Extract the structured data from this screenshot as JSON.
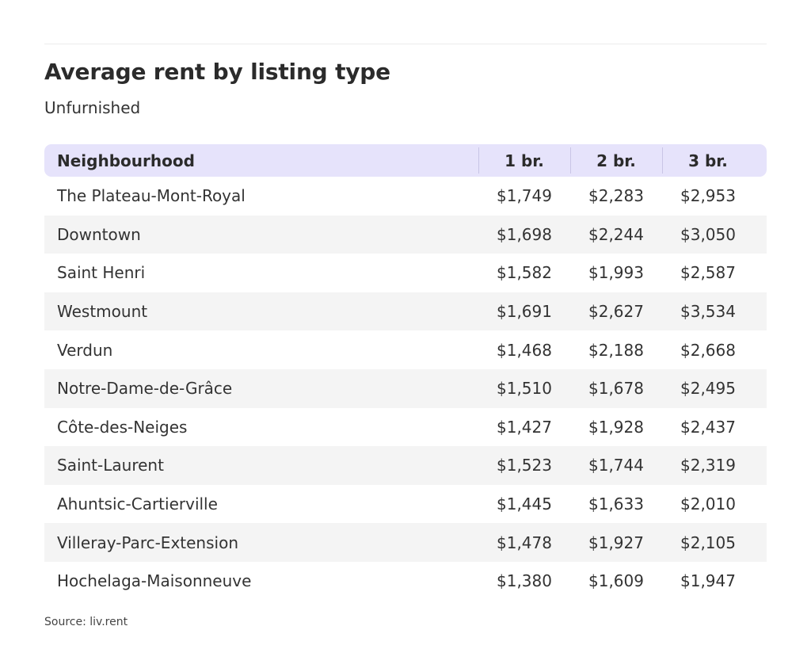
{
  "chart_data": {
    "type": "table",
    "title": "Average rent by listing type",
    "subtitle": "Unfurnished",
    "columns": [
      "Neighbourhood",
      "1 br.",
      "2 br.",
      "3 br."
    ],
    "rows": [
      [
        "The Plateau-Mont-Royal",
        "$1,749",
        "$2,283",
        "$2,953"
      ],
      [
        "Downtown",
        "$1,698",
        "$2,244",
        "$3,050"
      ],
      [
        "Saint Henri",
        "$1,582",
        "$1,993",
        "$2,587"
      ],
      [
        "Westmount",
        "$1,691",
        "$2,627",
        "$3,534"
      ],
      [
        "Verdun",
        "$1,468",
        "$2,188",
        "$2,668"
      ],
      [
        "Notre-Dame-de-Grâce",
        "$1,510",
        "$1,678",
        "$2,495"
      ],
      [
        "Côte-des-Neiges",
        "$1,427",
        "$1,928",
        "$2,437"
      ],
      [
        "Saint-Laurent",
        "$1,523",
        "$1,744",
        "$2,319"
      ],
      [
        "Ahuntsic-Cartierville",
        "$1,445",
        "$1,633",
        "$2,010"
      ],
      [
        "Villeray-Parc-Extension",
        "$1,478",
        "$1,927",
        "$2,105"
      ],
      [
        "Hochelaga-Maisonneuve",
        "$1,380",
        "$1,609",
        "$1,947"
      ]
    ],
    "source": "Source: liv.rent"
  },
  "colors": {
    "header_background": "#e6e3fb",
    "alternate_row_background": "#f4f4f4",
    "text": "#333333"
  }
}
